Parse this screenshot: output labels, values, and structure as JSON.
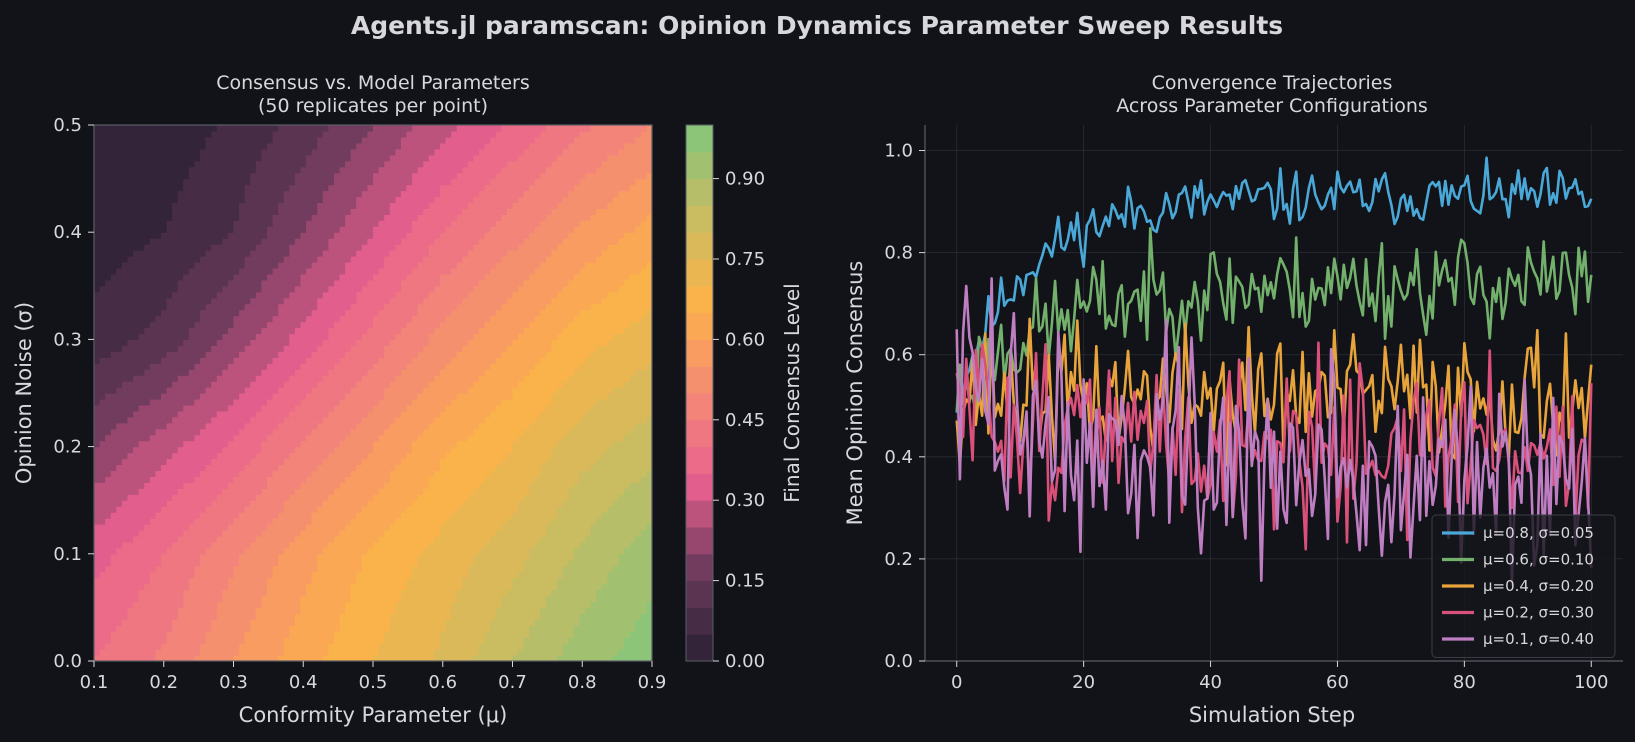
{
  "figure": {
    "title": "Agents.jl paramscan: Opinion Dynamics Parameter Sweep Results",
    "background": "#111318",
    "text_color": "#d8d8dc",
    "grid_color": "#2a2d34"
  },
  "chart_data": [
    {
      "type": "heatmap",
      "title_line1": "Consensus vs. Model Parameters",
      "title_line2": "(50 replicates per point)",
      "xlabel": "Conformity Parameter (μ)",
      "ylabel": "Opinion Noise (σ)",
      "xlim": [
        0.1,
        0.9
      ],
      "ylim": [
        0.0,
        0.5
      ],
      "x_ticks": [
        "0.1",
        "0.2",
        "0.3",
        "0.4",
        "0.5",
        "0.6",
        "0.7",
        "0.8",
        "0.9"
      ],
      "y_ticks": [
        "0.0",
        "0.1",
        "0.2",
        "0.3",
        "0.4",
        "0.5"
      ],
      "x_grid": [
        0.1,
        0.2,
        0.3,
        0.4,
        0.5,
        0.6,
        0.7,
        0.8,
        0.9
      ],
      "y_grid": [
        0.0,
        0.1,
        0.2,
        0.3,
        0.4,
        0.5
      ],
      "z": [
        [
          0.4,
          0.46,
          0.55,
          0.63,
          0.7,
          0.76,
          0.85,
          0.93,
          0.98
        ],
        [
          0.33,
          0.4,
          0.49,
          0.58,
          0.66,
          0.72,
          0.78,
          0.86,
          0.93
        ],
        [
          0.2,
          0.28,
          0.36,
          0.46,
          0.55,
          0.64,
          0.7,
          0.78,
          0.83
        ],
        [
          0.07,
          0.12,
          0.22,
          0.32,
          0.42,
          0.52,
          0.6,
          0.68,
          0.73
        ],
        [
          0.02,
          0.05,
          0.1,
          0.2,
          0.3,
          0.4,
          0.48,
          0.56,
          0.62
        ],
        [
          0.0,
          0.02,
          0.06,
          0.12,
          0.2,
          0.28,
          0.36,
          0.44,
          0.5
        ]
      ],
      "colorbar": {
        "label": "Final Consensus Level",
        "ticks": [
          "0.00",
          "0.15",
          "0.30",
          "0.45",
          "0.60",
          "0.75",
          "0.90"
        ],
        "tick_values": [
          0.0,
          0.15,
          0.3,
          0.45,
          0.6,
          0.75,
          0.9
        ],
        "range": [
          0.0,
          1.0
        ],
        "levels": 20
      },
      "colormap": [
        "#2a2033",
        "#6b3a5c",
        "#e8608e",
        "#f48a76",
        "#fdb24a",
        "#c7bc62",
        "#82c57c"
      ]
    },
    {
      "type": "line",
      "title_line1": "Convergence Trajectories",
      "title_line2": "Across Parameter Configurations",
      "xlabel": "Simulation Step",
      "ylabel": "Mean Opinion Consensus",
      "xlim": [
        -5,
        105
      ],
      "ylim": [
        0.0,
        1.05
      ],
      "x_ticks": [
        "0",
        "20",
        "40",
        "60",
        "80",
        "100"
      ],
      "x_tick_values": [
        0,
        20,
        40,
        60,
        80,
        100
      ],
      "y_ticks": [
        "0.0",
        "0.2",
        "0.4",
        "0.6",
        "0.8",
        "1.0"
      ],
      "y_tick_values": [
        0.0,
        0.2,
        0.4,
        0.6,
        0.8,
        1.0
      ],
      "legend_position": "lower-right",
      "steps": 201,
      "series": [
        {
          "name": "μ=0.8, σ=0.05",
          "color": "#4aa8d8",
          "start": 0.52,
          "end": 0.91,
          "rate": 0.09,
          "noise": 0.05,
          "seed": 11
        },
        {
          "name": "μ=0.6, σ=0.10",
          "color": "#72b06c",
          "start": 0.52,
          "end": 0.74,
          "rate": 0.07,
          "noise": 0.09,
          "seed": 23
        },
        {
          "name": "μ=0.4, σ=0.20",
          "color": "#e8a43a",
          "start": 0.53,
          "end": 0.52,
          "rate": 0.05,
          "noise": 0.12,
          "seed": 37
        },
        {
          "name": "μ=0.2, σ=0.30",
          "color": "#d9507a",
          "start": 0.5,
          "end": 0.42,
          "rate": 0.05,
          "noise": 0.15,
          "seed": 51
        },
        {
          "name": "μ=0.1, σ=0.40",
          "color": "#c07ec2",
          "start": 0.55,
          "end": 0.34,
          "rate": 0.04,
          "noise": 0.2,
          "seed": 73
        }
      ]
    }
  ]
}
